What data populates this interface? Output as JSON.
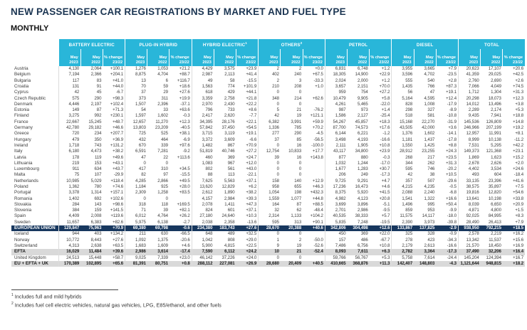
{
  "title": "NEW PASSENGER CAR REGISTRATIONS BY MARKET AND FUEL TYPE",
  "subtitle": "MONTHLY",
  "colors": {
    "header_bg": "#29b6d9",
    "eu_row_bg": "#17375e",
    "subtotal_row_bg": "#d9d9d9",
    "title_color": "#1b3552"
  },
  "table": {
    "groups": [
      {
        "label": "BATTERY ELECTRIC",
        "sup": ""
      },
      {
        "label": "PLUG-IN HYBRID",
        "sup": ""
      },
      {
        "label": "HYBRID ELECTRIC",
        "sup": "1"
      },
      {
        "label": "OTHERS",
        "sup": "2"
      },
      {
        "label": "PETROL",
        "sup": ""
      },
      {
        "label": "DIESEL",
        "sup": ""
      },
      {
        "label": "TOTAL",
        "sup": ""
      }
    ],
    "sub_columns": [
      {
        "line1": "May",
        "line2": "2023"
      },
      {
        "line1": "May",
        "line2": "2022"
      },
      {
        "line1": "% change",
        "line2": "23/22"
      }
    ],
    "rows": [
      {
        "name": "Austria",
        "style": "normal",
        "values": [
          "4,130",
          "2,064",
          "+100.1",
          "1,276",
          "1,053",
          "+21.2",
          "4,429",
          "3,575",
          "+23.9",
          "2",
          "2",
          "+0.0",
          "6,831",
          "6,748",
          "+1.2",
          "3,955",
          "3,665",
          "+7.9",
          "20,623",
          "17,107",
          "+20.6"
        ]
      },
      {
        "name": "Belgium",
        "style": "normal",
        "values": [
          "7,194",
          "2,366",
          "+204.1",
          "8,875",
          "4,704",
          "+88.7",
          "2,987",
          "2,113",
          "+41.4",
          "402",
          "240",
          "+67.5",
          "18,305",
          "14,900",
          "+22.9",
          "3,596",
          "4,702",
          "-23.5",
          "41,359",
          "29,025",
          "+42.5"
        ]
      },
      {
        "name": "Bulgaria",
        "style": "normal",
        "values": [
          "117",
          "83",
          "+41.0",
          "13",
          "6",
          "+116.7",
          "49",
          "58",
          "-15.5",
          "2",
          "3",
          "-33.3",
          "2,024",
          "2,000",
          "+1.2",
          "555",
          "540",
          "+2.8",
          "2,760",
          "2,690",
          "+2.6"
        ]
      },
      {
        "name": "Croatia",
        "style": "normal",
        "values": [
          "131",
          "91",
          "+44.0",
          "70",
          "59",
          "+18.6",
          "1,563",
          "774",
          "+101.9",
          "210",
          "208",
          "+1.0",
          "3,657",
          "2,151",
          "+70.0",
          "1,435",
          "766",
          "+87.3",
          "7,066",
          "4,049",
          "+74.5"
        ]
      },
      {
        "name": "Cyprus",
        "style": "normal",
        "values": [
          "42",
          "45",
          "-6.7",
          "37",
          "29",
          "+27.6",
          "618",
          "429",
          "+44.1",
          "0",
          "0",
          "",
          "959",
          "754",
          "+27.2",
          "56",
          "47",
          "+19.1",
          "1,712",
          "1,304",
          "+31.3"
        ]
      },
      {
        "name": "Czech Republic",
        "style": "normal",
        "values": [
          "575",
          "290",
          "+98.3",
          "373",
          "311",
          "+19.9",
          "3,359",
          "2,758",
          "+21.8",
          "348",
          "214",
          "+62.6",
          "10,479",
          "9,905",
          "+5.8",
          "5,164",
          "4,595",
          "+12.4",
          "20,298",
          "18,073",
          "+12.3"
        ]
      },
      {
        "name": "Denmark",
        "style": "normal",
        "values": [
          "4,446",
          "2,197",
          "+102.4",
          "1,507",
          "2,396",
          "-37.1",
          "2,970",
          "2,430",
          "+22.2",
          "0",
          "0",
          "",
          "4,261",
          "5,465",
          "-22.0",
          "828",
          "1,008",
          "-17.9",
          "14,012",
          "13,496",
          "+3.8"
        ]
      },
      {
        "name": "Estonia",
        "style": "normal",
        "values": [
          "149",
          "87",
          "+71.3",
          "54",
          "33",
          "+63.6",
          "796",
          "733",
          "+8.6",
          "5",
          "21",
          "-76.2",
          "987",
          "973",
          "+1.4",
          "298",
          "327",
          "-8.9",
          "2,289",
          "2,174",
          "+5.3"
        ]
      },
      {
        "name": "Finland",
        "style": "normal",
        "values": [
          "3,275",
          "992",
          "+230.1",
          "1,597",
          "1,602",
          "-0.3",
          "2,417",
          "2,620",
          "-7.7",
          "42",
          "19",
          "+121.1",
          "1,586",
          "2,127",
          "-25.4",
          "518",
          "581",
          "-10.8",
          "9,435",
          "7,941",
          "+18.8"
        ]
      },
      {
        "name": "France",
        "style": "normal",
        "values": [
          "22,667",
          "15,245",
          "+48.7",
          "12,657",
          "11,270",
          "+12.3",
          "34,395",
          "28,176",
          "+22.1",
          "6,382",
          "3,991",
          "+59.9",
          "54,267",
          "45,857",
          "+18.3",
          "15,168",
          "22,270",
          "-31.9",
          "145,536",
          "126,809",
          "+14.8"
        ]
      },
      {
        "name": "Germany",
        "style": "normal",
        "values": [
          "42,780",
          "29,182",
          "+46.6",
          "13,803",
          "23,209",
          "-40.5",
          "57,842",
          "37,450",
          "+54.5",
          "1,336",
          "785",
          "+70.2",
          "87,700",
          "74,573",
          "+17.6",
          "43,505",
          "42,000",
          "+3.6",
          "246,966",
          "207,199",
          "+19.2"
        ]
      },
      {
        "name": "Greece",
        "style": "normal",
        "values": [
          "720",
          "234",
          "+207.7",
          "725",
          "525",
          "+38.1",
          "3,715",
          "3,119",
          "+19.1",
          "277",
          "290",
          "-4.5",
          "6,144",
          "6,221",
          "-1.2",
          "1,376",
          "1,602",
          "-14.1",
          "12,957",
          "11,991",
          "+8.1"
        ]
      },
      {
        "name": "Hungary",
        "style": "normal",
        "values": [
          "479",
          "350",
          "+36.9",
          "432",
          "464",
          "-6.9",
          "3,372",
          "3,609",
          "-6.6",
          "37",
          "85",
          "-56.5",
          "3,498",
          "4,193",
          "-16.6",
          "1,181",
          "1,437",
          "-17.8",
          "8,999",
          "10,138",
          "-11.2"
        ]
      },
      {
        "name": "Ireland",
        "style": "normal",
        "values": [
          "1,718",
          "743",
          "+131.2",
          "670",
          "339",
          "+97.6",
          "1,482",
          "867",
          "+70.9",
          "0",
          "16",
          "-100.0",
          "2,111",
          "1,905",
          "+10.8",
          "1,550",
          "1,425",
          "+8.8",
          "7,531",
          "5,295",
          "+42.2"
        ]
      },
      {
        "name": "Italy",
        "style": "normal",
        "values": [
          "6,180",
          "4,473",
          "+38.2",
          "6,591",
          "7,281",
          "-9.2",
          "51,819",
          "40,746",
          "+27.2",
          "12,754",
          "10,833",
          "+17.7",
          "43,117",
          "34,800",
          "+23.9",
          "28,912",
          "23,255",
          "+24.3",
          "149,373",
          "121,368",
          "+23.1"
        ]
      },
      {
        "name": "Latvia",
        "style": "normal",
        "values": [
          "178",
          "119",
          "+49.6",
          "47",
          "22",
          "+113.6",
          "460",
          "369",
          "+24.7",
          "39",
          "16",
          "+143.8",
          "877",
          "880",
          "-0.3",
          "268",
          "217",
          "+23.5",
          "1,869",
          "1,623",
          "+15.2"
        ]
      },
      {
        "name": "Lithuania",
        "style": "normal",
        "values": [
          "219",
          "153",
          "+43.1",
          "0",
          "0",
          "",
          "1,083",
          "967",
          "+12.0",
          "0",
          "0",
          "",
          "1,032",
          "1,244",
          "-17.0",
          "344",
          "262",
          "+31.3",
          "2,678",
          "2,626",
          "+2.0"
        ]
      },
      {
        "name": "Luxembourg",
        "style": "normal",
        "values": [
          "911",
          "634",
          "+43.7",
          "417",
          "310",
          "+34.5",
          "802",
          "561",
          "+43.0",
          "0",
          "0",
          "",
          "1,677",
          "1,283",
          "+30.7",
          "595",
          "746",
          "-20.2",
          "4,402",
          "3,534",
          "+24.6"
        ]
      },
      {
        "name": "Malta",
        "style": "normal",
        "values": [
          "75",
          "107",
          "-29.9",
          "82",
          "97",
          "-15.5",
          "88",
          "113",
          "-22.1",
          "0",
          "0",
          "",
          "206",
          "249",
          "-17.3",
          "42",
          "38",
          "+10.5",
          "493",
          "604",
          "-18.4"
        ]
      },
      {
        "name": "Netherlands",
        "style": "normal",
        "values": [
          "10,985",
          "5,029",
          "+118.4",
          "4,285",
          "2,866",
          "+49.5",
          "7,625",
          "5,563",
          "+37.1",
          "158",
          "140",
          "+12.9",
          "9,725",
          "9,291",
          "+4.7",
          "357",
          "507",
          "-29.6",
          "33,135",
          "23,396",
          "+41.6"
        ]
      },
      {
        "name": "Poland",
        "style": "normal",
        "values": [
          "1,362",
          "780",
          "+74.6",
          "1,184",
          "925",
          "+28.0",
          "13,620",
          "12,829",
          "+6.2",
          "958",
          "655",
          "+46.3",
          "17,236",
          "16,473",
          "+4.6",
          "4,215",
          "4,235",
          "-0.5",
          "38,575",
          "35,897",
          "+7.5"
        ]
      },
      {
        "name": "Portugal",
        "style": "normal",
        "values": [
          "3,378",
          "1,314",
          "+157.1",
          "2,309",
          "1,258",
          "+83.5",
          "2,612",
          "1,890",
          "+38.2",
          "1,054",
          "198",
          "+432.3",
          "8,375",
          "5,920",
          "+41.5",
          "2,088",
          "2,240",
          "-6.8",
          "19,816",
          "12,820",
          "+54.6"
        ]
      },
      {
        "name": "Romania",
        "style": "normal",
        "values": [
          "1,402",
          "692",
          "+102.6",
          "0",
          "0",
          "",
          "4,157",
          "2,984",
          "+39.3",
          "1,559",
          "1,077",
          "+44.8",
          "4,982",
          "4,123",
          "+20.8",
          "1,541",
          "1,322",
          "+16.6",
          "13,641",
          "10,198",
          "+33.8"
        ]
      },
      {
        "name": "Slovakia",
        "style": "normal",
        "values": [
          "284",
          "143",
          "+98.6",
          "318",
          "118",
          "+169.5",
          "2,078",
          "1,411",
          "+47.3",
          "164",
          "87",
          "+88.5",
          "3,699",
          "3,896",
          "-5.1",
          "1,496",
          "995",
          "+50.4",
          "8,039",
          "6,650",
          "+20.9"
        ]
      },
      {
        "name": "Slovenia",
        "style": "normal",
        "values": [
          "384",
          "159",
          "+141.5",
          "71",
          "39",
          "+82.1",
          "824",
          "601",
          "+37.1",
          "32",
          "62",
          "-48.4",
          "2,701",
          "2,986",
          "-9.5",
          "859",
          "953",
          "-9.9",
          "4,871",
          "4,800",
          "+1.5"
        ]
      },
      {
        "name": "Spain",
        "style": "normal",
        "values": [
          "4,409",
          "2,008",
          "+119.6",
          "6,012",
          "4,764",
          "+26.2",
          "27,180",
          "24,640",
          "+10.3",
          "2,314",
          "1,133",
          "+104.2",
          "40,535",
          "38,333",
          "+5.7",
          "11,575",
          "14,117",
          "-18.0",
          "92,025",
          "84,995",
          "+8.3"
        ]
      },
      {
        "name": "Sweden",
        "style": "normal",
        "values": [
          "11,657",
          "6,383",
          "+82.6",
          "5,975",
          "6,138",
          "-2.7",
          "2,038",
          "2,358",
          "-13.6",
          "595",
          "313",
          "+90.1",
          "5,835",
          "7,248",
          "-19.5",
          "2,390",
          "3,973",
          "-39.8",
          "28,490",
          "26,413",
          "+7.9"
        ]
      },
      {
        "name": "EUROPEAN UNION",
        "style": "eu",
        "values": [
          "129,847",
          "75,963",
          "+70.9",
          "69,380",
          "69,798",
          "-0.6",
          "234,380",
          "183,743",
          "+27.6",
          "28,670",
          "20,388",
          "+40.6",
          "342,806",
          "304,498",
          "+12.6",
          "133,867",
          "137,825",
          "-2.9",
          "938,950",
          "792,215",
          "+18.5"
        ]
      },
      {
        "name": "Iceland",
        "style": "normal",
        "values": [
          "944",
          "403",
          "+134.2",
          "211",
          "630",
          "-66.5",
          "648",
          "489",
          "+32.5",
          "0",
          "0",
          "",
          "450",
          "369",
          "+22.0",
          "325",
          "328",
          "-0.9",
          "2,578",
          "2,219",
          "+16.2"
        ]
      },
      {
        "name": "Norway",
        "style": "normal",
        "values": [
          "10,772",
          "8,443",
          "+27.6",
          "1,092",
          "1,375",
          "-20.6",
          "1,042",
          "808",
          "+29.0",
          "1",
          "2",
          "-50.0",
          "157",
          "486",
          "-67.7",
          "278",
          "423",
          "-34.3",
          "13,342",
          "11,537",
          "+15.6"
        ]
      },
      {
        "name": "Switzerland",
        "style": "normal",
        "values": [
          "4,313",
          "2,638",
          "+63.5",
          "1,683",
          "1,609",
          "+4.6",
          "5,900",
          "4,815",
          "+22.5",
          "9",
          "19",
          "-52.6",
          "7,486",
          "6,756",
          "+10.8",
          "2,179",
          "2,613",
          "-16.6",
          "21,570",
          "18,450",
          "+16.9"
        ]
      },
      {
        "name": "EFTA",
        "style": "subtotal",
        "values": [
          "16,029",
          "11,484",
          "+39.6",
          "2,986",
          "3,614",
          "-17.4",
          "7,590",
          "6,112",
          "+24.2",
          "10",
          "21",
          "-52.4",
          "8,093",
          "7,611",
          "+6.3",
          "2,782",
          "3,364",
          "-17.3",
          "37,490",
          "32,206",
          "+16.4"
        ]
      },
      {
        "name": "United Kingdom",
        "style": "normal",
        "values": [
          "24,513",
          "15,448",
          "+58.7",
          "9,025",
          "7,339",
          "+23.0",
          "46,142",
          "37,226",
          "+24.0",
          "0",
          "0",
          "",
          "59,766",
          "56,767",
          "+5.3",
          "5,758",
          "7,614",
          "-24.4",
          "145,204",
          "124,394",
          "+16.7"
        ]
      },
      {
        "name": "EU + EFTA + UK",
        "style": "subtotal",
        "values": [
          "170,389",
          "102,895",
          "+65.6",
          "81,391",
          "80,751",
          "+0.8",
          "288,112",
          "227,081",
          "+26.9",
          "28,680",
          "20,409",
          "+40.5",
          "410,665",
          "368,876",
          "+11.3",
          "142,407",
          "148,803",
          "-4.3",
          "1,121,644",
          "948,815",
          "+18.2"
        ]
      }
    ]
  },
  "footnotes": [
    {
      "marker": "1",
      "text": "Includes full and mild hybrids"
    },
    {
      "marker": "2",
      "text": "Includes fuel cell electric vehicles, natural gas vehicles, LPG, E85/ethanol, and other fuels"
    }
  ]
}
